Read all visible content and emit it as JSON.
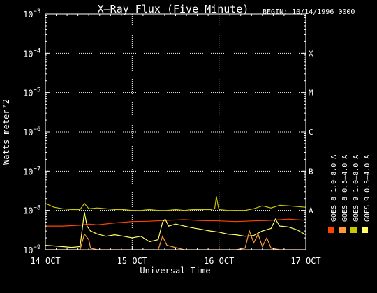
{
  "chart_data": {
    "type": "line",
    "title": "X–Ray Flux (Five Minute)",
    "begin_label": "BEGIN: 10/14/1996 0000",
    "xlabel": "Universal Time",
    "ylabel": "Watts meter²2",
    "y_scale": "log",
    "ylim": [
      1e-09,
      0.001
    ],
    "xlim": [
      0,
      3
    ],
    "grid": true,
    "y_ticks": [
      {
        "base": "10",
        "exp": "−9",
        "value": 1e-09
      },
      {
        "base": "10",
        "exp": "−8",
        "value": 1e-08
      },
      {
        "base": "10",
        "exp": "−7",
        "value": 1e-07
      },
      {
        "base": "10",
        "exp": "−6",
        "value": 1e-06
      },
      {
        "base": "10",
        "exp": "−5",
        "value": 1e-05
      },
      {
        "base": "10",
        "exp": "−4",
        "value": 0.0001
      },
      {
        "base": "10",
        "exp": "−3",
        "value": 0.001
      }
    ],
    "x_ticks": [
      {
        "label": "14 OCT",
        "value": 0
      },
      {
        "label": "15 OCT",
        "value": 1
      },
      {
        "label": "16 OCT",
        "value": 2
      },
      {
        "label": "17 OCT",
        "value": 3
      }
    ],
    "flare_classes": [
      {
        "label": "A",
        "value": 1e-08
      },
      {
        "label": "B",
        "value": 1e-07
      },
      {
        "label": "C",
        "value": 1e-06
      },
      {
        "label": "M",
        "value": 1e-05
      },
      {
        "label": "X",
        "value": 0.0001
      }
    ],
    "legend": [
      {
        "name": "GOES 8 1.0–8.0 A",
        "color": "#ff4400"
      },
      {
        "name": "GOES 8 0.5–4.0 A",
        "color": "#ff9933"
      },
      {
        "name": "GOES 9 1.0–8.0 A",
        "color": "#c8c800"
      },
      {
        "name": "GOES 9 0.5–4.0 A",
        "color": "#ffff66"
      }
    ],
    "series": [
      {
        "name": "GOES 9 1.0–8.0 A",
        "color": "#c8c800",
        "x": [
          0,
          0.1,
          0.2,
          0.3,
          0.4,
          0.45,
          0.5,
          0.6,
          0.7,
          0.8,
          0.9,
          1.0,
          1.1,
          1.2,
          1.3,
          1.4,
          1.5,
          1.6,
          1.7,
          1.8,
          1.9,
          1.95,
          1.97,
          1.99,
          2.0,
          2.1,
          2.2,
          2.3,
          2.4,
          2.5,
          2.6,
          2.7,
          2.8,
          2.9,
          3.0
        ],
        "y": [
          1.5e-08,
          1.2e-08,
          1.1e-08,
          1.05e-08,
          1.05e-08,
          1.5e-08,
          1.1e-08,
          1.15e-08,
          1.1e-08,
          1.05e-08,
          1.05e-08,
          1e-08,
          1e-08,
          1.05e-08,
          1e-08,
          1e-08,
          1.05e-08,
          1e-08,
          1.05e-08,
          1.05e-08,
          1.05e-08,
          1.1e-08,
          2.3e-08,
          1.3e-08,
          1.05e-08,
          1e-08,
          1e-08,
          1e-08,
          1.1e-08,
          1.3e-08,
          1.15e-08,
          1.35e-08,
          1.3e-08,
          1.25e-08,
          1.2e-08
        ]
      },
      {
        "name": "GOES 8 1.0–8.0 A",
        "color": "#ff4400",
        "x": [
          0,
          0.2,
          0.4,
          0.5,
          0.6,
          0.8,
          1.0,
          1.2,
          1.4,
          1.6,
          1.8,
          2.0,
          2.2,
          2.4,
          2.6,
          2.8,
          3.0
        ],
        "y": [
          4e-09,
          4e-09,
          4.2e-09,
          4.5e-09,
          4.3e-09,
          4.8e-09,
          5.2e-09,
          5.3e-09,
          5.6e-09,
          5.8e-09,
          5.5e-09,
          5.4e-09,
          5.2e-09,
          5.4e-09,
          5.6e-09,
          6e-09,
          5.6e-09
        ]
      },
      {
        "name": "GOES 9 0.5–4.0 A",
        "color": "#ffff66",
        "x": [
          0,
          0.1,
          0.2,
          0.3,
          0.4,
          0.45,
          0.48,
          0.52,
          0.6,
          0.7,
          0.8,
          0.9,
          1.0,
          1.1,
          1.2,
          1.3,
          1.35,
          1.38,
          1.42,
          1.5,
          1.6,
          1.7,
          1.8,
          1.9,
          2.0,
          2.1,
          2.2,
          2.3,
          2.4,
          2.5,
          2.6,
          2.65,
          2.7,
          2.8,
          2.9,
          3.0
        ],
        "y": [
          1.3e-09,
          1.25e-09,
          1.2e-09,
          1.15e-09,
          1.2e-09,
          9e-09,
          4e-09,
          3e-09,
          2.5e-09,
          2.2e-09,
          2.4e-09,
          2.2e-09,
          2e-09,
          2.2e-09,
          1.6e-09,
          1.8e-09,
          5e-09,
          6e-09,
          4e-09,
          4.5e-09,
          4e-09,
          3.6e-09,
          3.3e-09,
          3e-09,
          2.8e-09,
          2.5e-09,
          2.4e-09,
          2.2e-09,
          2.3e-09,
          3e-09,
          3.5e-09,
          6e-09,
          4e-09,
          3.8e-09,
          3.2e-09,
          2.4e-09
        ]
      },
      {
        "name": "GOES 8 0.5–4.0 A",
        "color": "#ff9933",
        "x": [
          0,
          0.1,
          0.2,
          0.3,
          0.4,
          0.45,
          0.5,
          0.52,
          0.6,
          0.8,
          1.0,
          1.2,
          1.3,
          1.35,
          1.4,
          1.6,
          1.8,
          2.0,
          2.2,
          2.3,
          2.35,
          2.4,
          2.45,
          2.5,
          2.55,
          2.6,
          2.7,
          2.8,
          2.9,
          3.0
        ],
        "y": [
          1e-09,
          1e-09,
          1e-09,
          1e-09,
          1e-09,
          2.5e-09,
          1.8e-09,
          1.1e-09,
          1e-09,
          1e-09,
          1e-09,
          1e-09,
          1e-09,
          2.2e-09,
          1.3e-09,
          1e-09,
          1e-09,
          1e-09,
          1e-09,
          1.1e-09,
          3e-09,
          1.5e-09,
          2.5e-09,
          1.2e-09,
          2e-09,
          1.1e-09,
          1e-09,
          1e-09,
          1e-09,
          1e-09
        ]
      }
    ]
  }
}
